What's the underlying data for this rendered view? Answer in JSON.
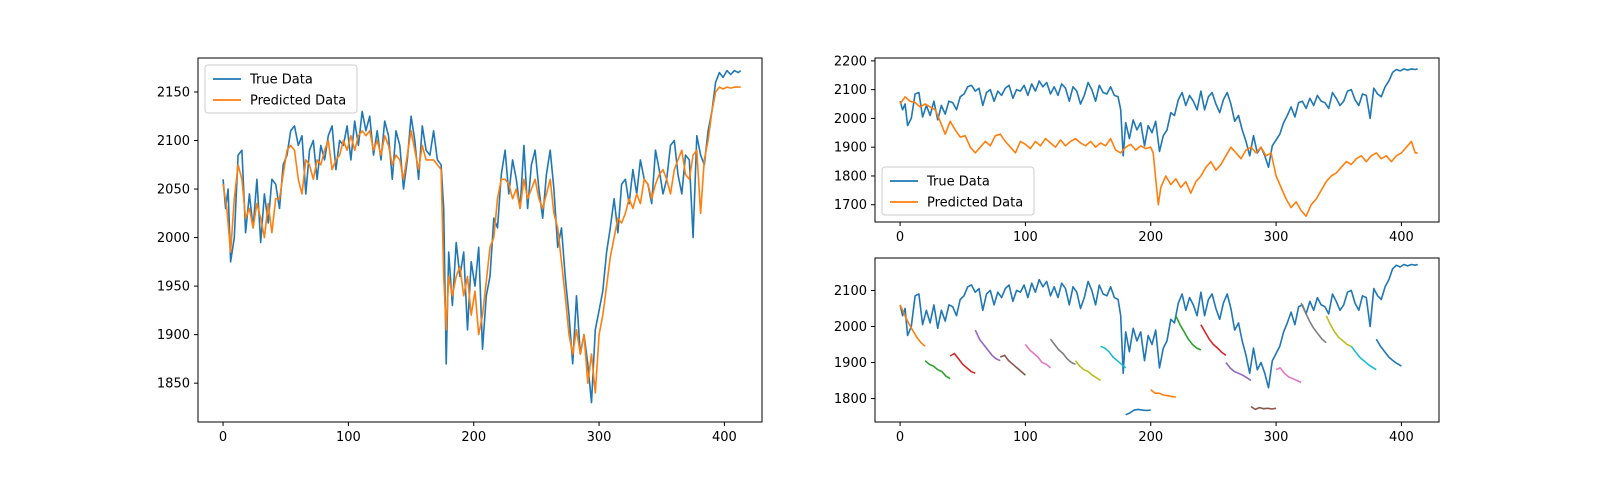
{
  "chart_data": [
    {
      "type": "line",
      "id": "full-sequence",
      "xlim": [
        -20,
        430
      ],
      "ylim": [
        1810,
        2185
      ],
      "xticks": [
        0,
        100,
        200,
        300,
        400
      ],
      "yticks": [
        1850,
        1900,
        1950,
        2000,
        2050,
        2100,
        2150
      ],
      "legend": "top-left",
      "series": [
        {
          "name": "True Data",
          "color": "#1f77b4",
          "x": [
            0,
            2,
            4,
            6,
            9,
            12,
            15,
            18,
            21,
            24,
            27,
            30,
            33,
            36,
            39,
            42,
            45,
            48,
            51,
            54,
            57,
            60,
            63,
            66,
            69,
            72,
            75,
            78,
            81,
            84,
            87,
            90,
            93,
            96,
            99,
            102,
            105,
            108,
            111,
            114,
            117,
            120,
            123,
            126,
            129,
            132,
            135,
            138,
            141,
            144,
            147,
            150,
            153,
            156,
            159,
            162,
            165,
            168,
            171,
            174,
            176,
            178,
            180,
            183,
            186,
            189,
            192,
            195,
            198,
            201,
            204,
            207,
            210,
            213,
            216,
            219,
            222,
            225,
            228,
            231,
            234,
            237,
            240,
            243,
            246,
            249,
            252,
            255,
            258,
            261,
            264,
            267,
            270,
            273,
            276,
            279,
            282,
            285,
            288,
            291,
            294,
            297,
            300,
            303,
            306,
            309,
            312,
            315,
            318,
            321,
            324,
            327,
            330,
            333,
            336,
            339,
            342,
            345,
            348,
            351,
            354,
            357,
            360,
            363,
            366,
            369,
            372,
            375,
            378,
            381,
            384,
            387,
            390,
            393,
            396,
            399,
            402,
            405,
            408,
            411,
            413
          ],
          "y": [
            2060,
            2030,
            2050,
            1975,
            2000,
            2085,
            2090,
            2005,
            2045,
            2010,
            2060,
            1995,
            2045,
            2015,
            2060,
            2055,
            2030,
            2075,
            2085,
            2110,
            2115,
            2095,
            2105,
            2045,
            2090,
            2100,
            2060,
            2095,
            2080,
            2105,
            2115,
            2070,
            2100,
            2095,
            2115,
            2080,
            2120,
            2095,
            2130,
            2110,
            2125,
            2085,
            2110,
            2080,
            2120,
            2105,
            2060,
            2110,
            2095,
            2050,
            2080,
            2125,
            2100,
            2060,
            2115,
            2090,
            2085,
            2110,
            2080,
            2075,
            2030,
            1870,
            1985,
            1930,
            1995,
            1960,
            1985,
            1905,
            1975,
            1950,
            1990,
            1885,
            1940,
            1960,
            2020,
            2010,
            2065,
            2090,
            2045,
            2080,
            2060,
            2030,
            2095,
            2030,
            2075,
            2090,
            2050,
            2020,
            2065,
            2090,
            2050,
            1990,
            2010,
            1960,
            1920,
            1870,
            1940,
            1880,
            1900,
            1870,
            1830,
            1905,
            1925,
            1945,
            1985,
            2010,
            2040,
            2005,
            2055,
            2060,
            2035,
            2070,
            2045,
            2080,
            2060,
            2055,
            2035,
            2090,
            2070,
            2045,
            2060,
            2095,
            2100,
            2065,
            2045,
            2085,
            2080,
            2000,
            2105,
            2085,
            2075,
            2110,
            2130,
            2160,
            2170,
            2165,
            2172,
            2168,
            2172,
            2170,
            2172
          ],
          "__note": "true series reused (identical) in all three panels"
        },
        {
          "name": "Predicted Data",
          "color": "#ff7f0e",
          "x": [
            0,
            3,
            6,
            9,
            12,
            15,
            18,
            21,
            24,
            27,
            30,
            33,
            36,
            39,
            42,
            45,
            48,
            51,
            54,
            57,
            60,
            63,
            66,
            69,
            72,
            75,
            78,
            81,
            84,
            87,
            90,
            93,
            96,
            99,
            102,
            105,
            108,
            111,
            114,
            117,
            120,
            123,
            126,
            129,
            132,
            135,
            138,
            141,
            144,
            147,
            150,
            153,
            156,
            159,
            162,
            165,
            168,
            171,
            174,
            176,
            178,
            180,
            183,
            186,
            189,
            192,
            195,
            198,
            201,
            204,
            207,
            210,
            213,
            216,
            219,
            222,
            225,
            228,
            231,
            234,
            237,
            240,
            243,
            246,
            249,
            252,
            255,
            258,
            261,
            264,
            267,
            270,
            273,
            276,
            279,
            282,
            285,
            288,
            291,
            294,
            297,
            300,
            303,
            306,
            309,
            312,
            315,
            318,
            321,
            324,
            327,
            330,
            333,
            336,
            339,
            342,
            345,
            348,
            351,
            354,
            357,
            360,
            363,
            366,
            369,
            372,
            375,
            378,
            381,
            384,
            387,
            390,
            393,
            396,
            399,
            402,
            405,
            408,
            411,
            413
          ],
          "y": [
            2055,
            2030,
            1985,
            2040,
            2075,
            2060,
            2020,
            2030,
            2010,
            2035,
            2020,
            2000,
            2035,
            2005,
            2040,
            2040,
            2065,
            2090,
            2095,
            2090,
            2060,
            2045,
            2080,
            2075,
            2060,
            2080,
            2075,
            2090,
            2100,
            2070,
            2080,
            2085,
            2100,
            2090,
            2105,
            2090,
            2105,
            2110,
            2105,
            2110,
            2090,
            2100,
            2085,
            2105,
            2095,
            2075,
            2085,
            2080,
            2060,
            2085,
            2110,
            2090,
            2070,
            2095,
            2080,
            2080,
            2080,
            2075,
            2070,
            1960,
            1905,
            1960,
            1940,
            1960,
            1970,
            1940,
            1960,
            1920,
            1945,
            1900,
            1920,
            1955,
            1990,
            2000,
            2040,
            2060,
            2060,
            2055,
            2040,
            2050,
            2030,
            2060,
            2040,
            2050,
            2060,
            2040,
            2030,
            2045,
            2060,
            2025,
            2010,
            1975,
            1940,
            1900,
            1880,
            1905,
            1880,
            1900,
            1850,
            1880,
            1840,
            1900,
            1920,
            1950,
            1980,
            2000,
            2020,
            2015,
            2025,
            2040,
            2030,
            2045,
            2035,
            2060,
            2055,
            2040,
            2055,
            2065,
            2070,
            2060,
            2045,
            2070,
            2080,
            2090,
            2065,
            2060,
            2085,
            2090,
            2025,
            2080,
            2100,
            2130,
            2150,
            2155,
            2153,
            2155,
            2154,
            2155,
            2155,
            2155
          ]
        }
      ]
    },
    {
      "type": "line",
      "id": "full-sequence-multistep",
      "xlim": [
        -20,
        430
      ],
      "ylim": [
        1640,
        2210
      ],
      "xticks": [
        0,
        100,
        200,
        300,
        400
      ],
      "yticks": [
        1700,
        1800,
        1900,
        2000,
        2100,
        2200
      ],
      "legend": "bottom-left",
      "series": [
        {
          "name": "True Data",
          "color": "#1f77b4",
          "ref": "true"
        },
        {
          "name": "Predicted Data",
          "color": "#ff7f0e",
          "x": [
            0,
            4,
            8,
            12,
            16,
            20,
            24,
            28,
            32,
            36,
            40,
            44,
            48,
            52,
            56,
            60,
            64,
            68,
            72,
            76,
            80,
            84,
            88,
            92,
            96,
            100,
            104,
            108,
            112,
            116,
            120,
            124,
            128,
            132,
            136,
            140,
            144,
            148,
            152,
            156,
            160,
            164,
            168,
            172,
            176,
            180,
            184,
            188,
            192,
            196,
            200,
            202,
            204,
            206,
            208,
            212,
            216,
            220,
            224,
            228,
            232,
            236,
            240,
            244,
            248,
            252,
            256,
            260,
            264,
            268,
            272,
            276,
            280,
            284,
            288,
            292,
            296,
            300,
            304,
            308,
            312,
            316,
            320,
            324,
            328,
            332,
            336,
            340,
            344,
            348,
            352,
            356,
            360,
            364,
            368,
            372,
            376,
            380,
            384,
            388,
            392,
            396,
            400,
            404,
            408,
            411,
            413
          ],
          "y": [
            2050,
            2075,
            2060,
            2055,
            2040,
            2050,
            2040,
            2030,
            1990,
            1945,
            1990,
            1960,
            1935,
            1940,
            1900,
            1880,
            1900,
            1920,
            1905,
            1940,
            1945,
            1920,
            1900,
            1880,
            1920,
            1910,
            1895,
            1920,
            1905,
            1930,
            1915,
            1900,
            1925,
            1905,
            1920,
            1930,
            1915,
            1905,
            1920,
            1900,
            1915,
            1905,
            1930,
            1890,
            1880,
            1900,
            1910,
            1890,
            1905,
            1895,
            1900,
            1880,
            1790,
            1700,
            1760,
            1800,
            1770,
            1790,
            1760,
            1780,
            1740,
            1780,
            1800,
            1830,
            1850,
            1820,
            1840,
            1870,
            1900,
            1880,
            1860,
            1890,
            1900,
            1880,
            1900,
            1870,
            1880,
            1800,
            1760,
            1720,
            1690,
            1710,
            1680,
            1660,
            1700,
            1720,
            1750,
            1780,
            1800,
            1810,
            1830,
            1850,
            1840,
            1860,
            1870,
            1850,
            1870,
            1880,
            1860,
            1870,
            1850,
            1870,
            1880,
            1900,
            1920,
            1880,
            1880
          ]
        }
      ]
    },
    {
      "type": "line",
      "id": "multi-step-segments",
      "xlim": [
        -20,
        430
      ],
      "ylim": [
        1735,
        2190
      ],
      "xticks": [
        0,
        100,
        200,
        300,
        400
      ],
      "yticks": [
        1800,
        1900,
        2000,
        2100
      ],
      "legend": "none",
      "series": [
        {
          "name": "",
          "color": "#1f77b4",
          "ref": "true"
        }
      ],
      "segments": [
        {
          "x0": 0,
          "color": "#ff7f0e",
          "y": [
            2060,
            2035,
            2010,
            1990,
            1970,
            1955,
            1945
          ]
        },
        {
          "x0": 20,
          "color": "#2ca02c",
          "y": [
            1905,
            1895,
            1890,
            1880,
            1875,
            1862,
            1855
          ]
        },
        {
          "x0": 40,
          "color": "#d62728",
          "y": [
            1918,
            1925,
            1910,
            1895,
            1885,
            1875,
            1870
          ]
        },
        {
          "x0": 60,
          "color": "#9467bd",
          "y": [
            1990,
            1965,
            1950,
            1935,
            1920,
            1910,
            1905
          ]
        },
        {
          "x0": 80,
          "color": "#8c564b",
          "y": [
            1915,
            1920,
            1905,
            1895,
            1885,
            1875,
            1865
          ]
        },
        {
          "x0": 100,
          "color": "#e377c2",
          "y": [
            1950,
            1935,
            1925,
            1915,
            1900,
            1895,
            1885
          ]
        },
        {
          "x0": 120,
          "color": "#7f7f7f",
          "y": [
            1965,
            1950,
            1935,
            1925,
            1910,
            1900,
            1895
          ]
        },
        {
          "x0": 140,
          "color": "#bcbd22",
          "y": [
            1905,
            1890,
            1880,
            1875,
            1865,
            1858,
            1850
          ]
        },
        {
          "x0": 160,
          "color": "#17becf",
          "y": [
            1945,
            1940,
            1930,
            1915,
            1905,
            1895,
            1885
          ]
        },
        {
          "x0": 180,
          "color": "#1f77b4",
          "y": [
            1755,
            1760,
            1768,
            1770,
            1768,
            1767,
            1768
          ]
        },
        {
          "x0": 200,
          "color": "#ff7f0e",
          "y": [
            1825,
            1815,
            1815,
            1810,
            1808,
            1806,
            1804
          ]
        },
        {
          "x0": 220,
          "color": "#2ca02c",
          "y": [
            2030,
            2005,
            1985,
            1965,
            1950,
            1940,
            1935
          ]
        },
        {
          "x0": 240,
          "color": "#d62728",
          "y": [
            2005,
            1985,
            1965,
            1950,
            1940,
            1928,
            1920
          ]
        },
        {
          "x0": 260,
          "color": "#9467bd",
          "y": [
            1900,
            1885,
            1875,
            1870,
            1865,
            1858,
            1850
          ]
        },
        {
          "x0": 280,
          "color": "#8c564b",
          "y": [
            1778,
            1770,
            1775,
            1772,
            1773,
            1771,
            1773
          ]
        },
        {
          "x0": 300,
          "color": "#e377c2",
          "y": [
            1880,
            1885,
            1870,
            1860,
            1855,
            1850,
            1845
          ]
        },
        {
          "x0": 320,
          "color": "#7f7f7f",
          "y": [
            2065,
            2040,
            2015,
            1995,
            1980,
            1965,
            1955
          ]
        },
        {
          "x0": 340,
          "color": "#bcbd22",
          "y": [
            2030,
            2005,
            1985,
            1970,
            1960,
            1950,
            1945
          ]
        },
        {
          "x0": 360,
          "color": "#17becf",
          "y": [
            1945,
            1930,
            1915,
            1905,
            1895,
            1887,
            1880
          ]
        },
        {
          "x0": 380,
          "color": "#1f77b4",
          "y": [
            1965,
            1945,
            1930,
            1915,
            1905,
            1897,
            1890
          ]
        }
      ]
    }
  ]
}
